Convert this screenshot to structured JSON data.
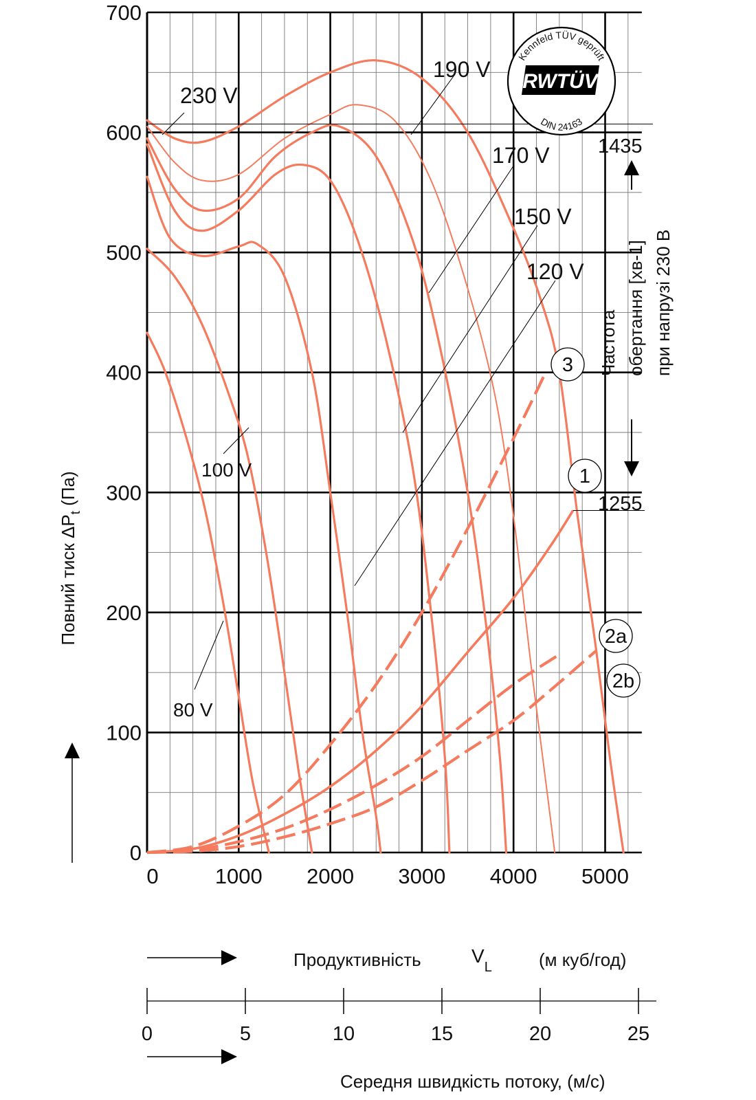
{
  "chart_data": {
    "type": "line",
    "title": "",
    "ylabel": "Повний тиск ΔPt (Па)",
    "ylabel_main": "Повний тиск ΔP",
    "ylabel_sub": "t",
    "ylabel_unit": " (Па)",
    "xlabel_word": "Продуктивність",
    "xlabel_symbol": "V",
    "xlabel_symbol_sub": "L",
    "xlabel_unit": "(м куб/год)",
    "xlim": [
      0,
      5400
    ],
    "ylim": [
      0,
      700
    ],
    "x_ticks": [
      0,
      1000,
      2000,
      3000,
      4000,
      5000
    ],
    "y_ticks": [
      0,
      100,
      200,
      300,
      400,
      500,
      600,
      700
    ],
    "grid": true,
    "voltage_curves": [
      {
        "name": "230 V",
        "points": [
          [
            0,
            610
          ],
          [
            300,
            595
          ],
          [
            600,
            592
          ],
          [
            1000,
            605
          ],
          [
            1500,
            630
          ],
          [
            2000,
            650
          ],
          [
            2500,
            660
          ],
          [
            3000,
            645
          ],
          [
            3500,
            600
          ],
          [
            4000,
            520
          ],
          [
            4300,
            460
          ],
          [
            4500,
            400
          ],
          [
            4700,
            280
          ],
          [
            4900,
            170
          ],
          [
            5050,
            80
          ],
          [
            5200,
            0
          ]
        ]
      },
      {
        "name": "",
        "points": [
          [
            0,
            605
          ],
          [
            300,
            575
          ],
          [
            600,
            560
          ],
          [
            1000,
            565
          ],
          [
            1500,
            595
          ],
          [
            2000,
            615
          ],
          [
            2300,
            623
          ],
          [
            2700,
            610
          ],
          [
            3100,
            560
          ],
          [
            3500,
            470
          ],
          [
            3800,
            380
          ],
          [
            4000,
            280
          ],
          [
            4200,
            150
          ],
          [
            4350,
            60
          ],
          [
            4450,
            0
          ]
        ]
      },
      {
        "name": "190 V",
        "points": [
          [
            0,
            595
          ],
          [
            300,
            553
          ],
          [
            600,
            535
          ],
          [
            1000,
            545
          ],
          [
            1400,
            580
          ],
          [
            1800,
            600
          ],
          [
            2100,
            605
          ],
          [
            2500,
            580
          ],
          [
            2900,
            510
          ],
          [
            3200,
            420
          ],
          [
            3500,
            300
          ],
          [
            3700,
            190
          ],
          [
            3850,
            80
          ],
          [
            3920,
            0
          ]
        ]
      },
      {
        "name": "170 V",
        "points": [
          [
            0,
            590
          ],
          [
            300,
            535
          ],
          [
            600,
            518
          ],
          [
            1000,
            535
          ],
          [
            1400,
            565
          ],
          [
            1700,
            573
          ],
          [
            2000,
            560
          ],
          [
            2300,
            510
          ],
          [
            2600,
            430
          ],
          [
            2900,
            320
          ],
          [
            3100,
            200
          ],
          [
            3250,
            80
          ],
          [
            3300,
            0
          ]
        ]
      },
      {
        "name": "150 V",
        "points": [
          [
            0,
            563
          ],
          [
            250,
            512
          ],
          [
            600,
            497
          ],
          [
            1000,
            505
          ],
          [
            1200,
            507
          ],
          [
            1500,
            480
          ],
          [
            1800,
            400
          ],
          [
            2000,
            300
          ],
          [
            2200,
            190
          ],
          [
            2350,
            100
          ],
          [
            2500,
            30
          ],
          [
            2550,
            0
          ]
        ]
      },
      {
        "name": "120 V",
        "points": [
          [
            0,
            503
          ],
          [
            300,
            480
          ],
          [
            600,
            440
          ],
          [
            900,
            380
          ],
          [
            1100,
            330
          ],
          [
            1300,
            250
          ],
          [
            1500,
            150
          ],
          [
            1650,
            70
          ],
          [
            1800,
            0
          ]
        ]
      },
      {
        "name": "100 V",
        "points": [
          [
            0,
            433
          ],
          [
            200,
            400
          ],
          [
            450,
            340
          ],
          [
            650,
            280
          ],
          [
            850,
            200
          ],
          [
            1000,
            130
          ],
          [
            1150,
            60
          ],
          [
            1330,
            0
          ]
        ]
      }
    ],
    "system_curves": [
      {
        "name": "3",
        "dashed": true,
        "points": [
          [
            0,
            0
          ],
          [
            500,
            5
          ],
          [
            1000,
            22
          ],
          [
            1500,
            48
          ],
          [
            2000,
            90
          ],
          [
            2500,
            140
          ],
          [
            3000,
            200
          ],
          [
            3500,
            270
          ],
          [
            4000,
            345
          ],
          [
            4350,
            400
          ]
        ]
      },
      {
        "name": "1",
        "dashed": false,
        "points": [
          [
            0,
            0
          ],
          [
            500,
            3
          ],
          [
            1000,
            14
          ],
          [
            1500,
            32
          ],
          [
            2000,
            55
          ],
          [
            2500,
            85
          ],
          [
            3000,
            122
          ],
          [
            3500,
            167
          ],
          [
            4000,
            212
          ],
          [
            4400,
            255
          ],
          [
            4650,
            285
          ]
        ]
      },
      {
        "name": "2a",
        "dashed": true,
        "points": [
          [
            0,
            0
          ],
          [
            500,
            2
          ],
          [
            1000,
            9
          ],
          [
            1500,
            20
          ],
          [
            2000,
            36
          ],
          [
            2500,
            56
          ],
          [
            3000,
            80
          ],
          [
            3500,
            110
          ],
          [
            4000,
            140
          ],
          [
            4500,
            165
          ]
        ]
      },
      {
        "name": "2b",
        "dashed": true,
        "points": [
          [
            0,
            0
          ],
          [
            500,
            1
          ],
          [
            1000,
            5
          ],
          [
            1500,
            13
          ],
          [
            2000,
            24
          ],
          [
            2500,
            38
          ],
          [
            3000,
            60
          ],
          [
            3500,
            85
          ],
          [
            4000,
            110
          ],
          [
            4400,
            135
          ],
          [
            4900,
            168
          ]
        ]
      }
    ],
    "leader_labels": [
      {
        "text": "230 V"
      },
      {
        "text": "190 V"
      },
      {
        "text": "170 V"
      },
      {
        "text": "150 V"
      },
      {
        "text": "120 V"
      },
      {
        "text": "100 V"
      },
      {
        "text": "80 V"
      }
    ],
    "circle_labels": [
      "3",
      "1",
      "2a",
      "2b"
    ],
    "rpm_top": "1435",
    "rpm_bottom": "1255",
    "right_label_lines": [
      "Частота",
      "обертання [хв-1]",
      "при напрузі 230 В"
    ],
    "velocity_axis": {
      "label": "Середня швидкість потоку, (м/с)",
      "ticks": [
        "0",
        "5",
        "10",
        "15",
        "20",
        "25"
      ]
    },
    "seal": {
      "top_text": "Kennfeld TÜV geprüft",
      "center_text": "RWTÜV",
      "bottom_text": "DIN 24163"
    },
    "colors": {
      "curve": "#f47b5e",
      "grid_major": "#000000",
      "grid_minor": "#777777"
    }
  }
}
